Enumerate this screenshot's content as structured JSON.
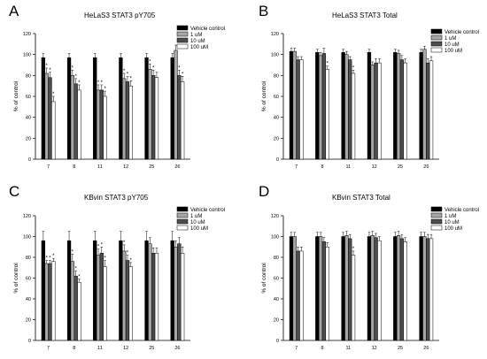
{
  "figure": {
    "legend_entries": [
      "Vehicle control",
      "1 uM",
      "10 uM",
      "100 uM"
    ],
    "legend_colors": [
      "#000000",
      "#a6a6a6",
      "#4d4d4d",
      "#ffffff"
    ]
  },
  "chart_data": [
    {
      "panel": "A",
      "type": "bar",
      "title": "HeLaS3 STAT3 pY705",
      "ylabel": "% of control",
      "xlabel": "",
      "ylim": [
        0,
        120
      ],
      "yticks": [
        0,
        20,
        40,
        60,
        80,
        100,
        120
      ],
      "categories": [
        "7",
        "8",
        "11",
        "12",
        "25",
        "26"
      ],
      "legend_placement": "top-right",
      "series": [
        {
          "name": "Vehicle control",
          "values": [
            97,
            97,
            97,
            97,
            97,
            97
          ],
          "errors": [
            4,
            4,
            4,
            4,
            4,
            4
          ]
        },
        {
          "name": "1 uM",
          "values": [
            82,
            80,
            66,
            77,
            86,
            104
          ],
          "errors": [
            5,
            5,
            5,
            5,
            5,
            5
          ]
        },
        {
          "name": "10 uM",
          "values": [
            78,
            72,
            66,
            74,
            80,
            80
          ],
          "errors": [
            5,
            5,
            5,
            5,
            5,
            5
          ]
        },
        {
          "name": "100 uM",
          "values": [
            55,
            66,
            60,
            70,
            78,
            74
          ],
          "errors": [
            5,
            5,
            5,
            5,
            5,
            5
          ]
        }
      ],
      "annotations": [
        {
          "category": "7",
          "series": [
            "1 uM",
            "10 uM",
            "100 uM"
          ],
          "text": "*"
        },
        {
          "category": "8",
          "series": [
            "1 uM",
            "10 uM",
            "100 uM"
          ],
          "text": "*"
        },
        {
          "category": "11",
          "series": [
            "1 uM",
            "10 uM",
            "100 uM"
          ],
          "text": "*"
        },
        {
          "category": "12",
          "series": [
            "1 uM",
            "10 uM",
            "100 uM"
          ],
          "text": "*"
        },
        {
          "category": "25",
          "series": [
            "1 uM",
            "10 uM"
          ],
          "text": "*"
        },
        {
          "category": "26",
          "series": [
            "10 uM",
            "100 uM"
          ],
          "text": "*"
        }
      ]
    },
    {
      "panel": "B",
      "type": "bar",
      "title": "HeLaS3 STAT3 Total",
      "ylabel": "% of control",
      "xlabel": "",
      "ylim": [
        0,
        120
      ],
      "yticks": [
        0,
        20,
        40,
        60,
        80,
        100,
        120
      ],
      "categories": [
        "7",
        "8",
        "11",
        "12",
        "25",
        "26"
      ],
      "legend_placement": "top-right",
      "series": [
        {
          "name": "Vehicle control",
          "values": [
            103,
            102,
            102,
            102,
            102,
            102
          ],
          "errors": [
            3,
            3,
            3,
            3,
            3,
            3
          ]
        },
        {
          "name": "1 uM",
          "values": [
            103,
            99,
            100,
            90,
            101,
            105
          ],
          "errors": [
            3,
            3,
            3,
            3,
            3,
            3
          ]
        },
        {
          "name": "10 uM",
          "values": [
            95,
            101,
            95,
            92,
            95,
            92
          ],
          "errors": [
            3,
            5,
            3,
            4,
            4,
            4
          ]
        },
        {
          "name": "100 uM",
          "values": [
            95,
            86,
            82,
            92,
            92,
            94
          ],
          "errors": [
            3,
            3,
            3,
            4,
            4,
            4
          ]
        }
      ],
      "annotations": [
        {
          "category": "8",
          "series": [
            "100 uM"
          ],
          "text": "*"
        },
        {
          "category": "11",
          "series": [
            "100 uM"
          ],
          "text": "*"
        }
      ]
    },
    {
      "panel": "C",
      "type": "bar",
      "title": "KBvin STAT3 pY705",
      "ylabel": "% of control",
      "xlabel": "",
      "ylim": [
        0,
        120
      ],
      "yticks": [
        0,
        20,
        40,
        60,
        80,
        100,
        120
      ],
      "categories": [
        "7",
        "8",
        "11",
        "12",
        "25",
        "26"
      ],
      "legend_placement": "top-right",
      "series": [
        {
          "name": "Vehicle control",
          "values": [
            96,
            96,
            96,
            96,
            96,
            96
          ],
          "errors": [
            9,
            9,
            9,
            9,
            9,
            9
          ]
        },
        {
          "name": "1 uM",
          "values": [
            74,
            76,
            82,
            86,
            93,
            90
          ],
          "errors": [
            3,
            7,
            6,
            6,
            6,
            6
          ]
        },
        {
          "name": "10 uM",
          "values": [
            74,
            62,
            84,
            77,
            84,
            93
          ],
          "errors": [
            3,
            5,
            6,
            5,
            5,
            6
          ]
        },
        {
          "name": "100 uM",
          "values": [
            76,
            56,
            71,
            71,
            84,
            84
          ],
          "errors": [
            3,
            3,
            6,
            4,
            5,
            6
          ]
        }
      ],
      "annotations": [
        {
          "category": "7",
          "series": [
            "1 uM",
            "10 uM",
            "100 uM"
          ],
          "text": "*"
        },
        {
          "category": "8",
          "series": [
            "1 uM",
            "10 uM",
            "100 uM"
          ],
          "text": "*"
        },
        {
          "category": "11",
          "series": [
            "1 uM",
            "10 uM",
            "100 uM"
          ],
          "text": "*"
        },
        {
          "category": "12",
          "series": [
            "1 uM",
            "10 uM",
            "100 uM"
          ],
          "text": "*"
        }
      ]
    },
    {
      "panel": "D",
      "type": "bar",
      "title": "KBvin STAT3 Total",
      "ylabel": "% of control",
      "xlabel": "",
      "ylim": [
        0,
        120
      ],
      "yticks": [
        0,
        20,
        40,
        60,
        80,
        100,
        120
      ],
      "categories": [
        "7",
        "8",
        "11",
        "12",
        "25",
        "26"
      ],
      "legend_placement": "top-right",
      "series": [
        {
          "name": "Vehicle control",
          "values": [
            100,
            100,
            100,
            100,
            100,
            100
          ],
          "errors": [
            4,
            4,
            4,
            4,
            4,
            4
          ]
        },
        {
          "name": "1 uM",
          "values": [
            100,
            100,
            101,
            101,
            101,
            100
          ],
          "errors": [
            4,
            4,
            4,
            4,
            4,
            4
          ]
        },
        {
          "name": "10 uM",
          "values": [
            86,
            95,
            98,
            99,
            98,
            98
          ],
          "errors": [
            4,
            4,
            4,
            4,
            4,
            4
          ]
        },
        {
          "name": "100 uM",
          "values": [
            86,
            90,
            82,
            96,
            95,
            98
          ],
          "errors": [
            4,
            4,
            4,
            4,
            4,
            4
          ]
        }
      ],
      "annotations": [
        {
          "category": "11",
          "series": [
            "100 uM"
          ],
          "text": "*"
        }
      ]
    }
  ]
}
